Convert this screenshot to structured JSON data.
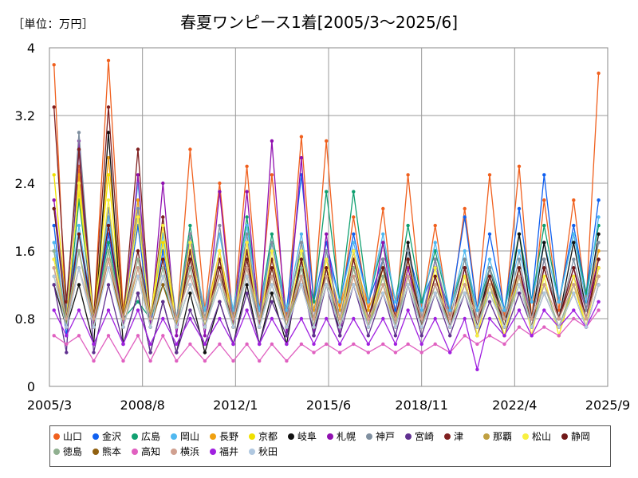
{
  "unit_label": "［単位：万円］",
  "chart_data": {
    "type": "line",
    "title": "春夏ワンピース1着[2005/3～2025/6]",
    "xlabel": "",
    "ylabel": "",
    "x_range": [
      "2005/3",
      "2025/9"
    ],
    "x_ticks": [
      "2005/3",
      "2008/8",
      "2012/1",
      "2015/6",
      "2018/11",
      "2022/4",
      "2025/9"
    ],
    "ylim": [
      0,
      4
    ],
    "y_ticks": [
      "0",
      "0.8",
      "1.6",
      "2.4",
      "3.2",
      "4"
    ],
    "grid": true,
    "legend_position": "bottom",
    "peak_months": [
      "2005/5",
      "2006/4",
      "2007/5",
      "2008/6",
      "2009/5",
      "2010/5",
      "2011/6",
      "2012/6",
      "2013/5",
      "2014/6",
      "2015/5",
      "2016/5",
      "2017/6",
      "2018/5",
      "2019/5",
      "2020/6",
      "2021/5",
      "2022/6",
      "2023/5",
      "2024/6",
      "2025/5"
    ],
    "series": [
      {
        "name": "山口",
        "color": "#f0601e",
        "values": [
          3.8,
          2.6,
          3.85,
          2.0,
          1.9,
          2.8,
          2.4,
          2.6,
          2.5,
          2.95,
          2.9,
          2.0,
          2.1,
          2.5,
          1.9,
          2.1,
          2.5,
          2.6,
          2.2,
          2.2,
          3.7
        ],
        "troughs": [
          0.7,
          0.8,
          0.9,
          0.8,
          0.7,
          0.9,
          0.8,
          0.9,
          0.8,
          1.0,
          0.9,
          0.9,
          0.8,
          0.9,
          0.8,
          0.9,
          0.8,
          0.8,
          0.9,
          1.0
        ]
      },
      {
        "name": "金沢",
        "color": "#1060f0",
        "values": [
          1.9,
          1.8,
          1.8,
          1.9,
          1.6,
          1.6,
          1.5,
          1.6,
          1.7,
          2.5,
          1.7,
          1.8,
          1.5,
          1.6,
          1.4,
          2.0,
          1.8,
          2.1,
          2.5,
          1.9,
          2.2
        ],
        "troughs": [
          0.6,
          0.7,
          0.8,
          0.7,
          0.7,
          0.8,
          0.8,
          0.9,
          0.9,
          1.0,
          1.0,
          1.0,
          0.9,
          1.0,
          0.9,
          0.9,
          0.9,
          1.0,
          1.0,
          1.1
        ]
      },
      {
        "name": "広島",
        "color": "#10a070",
        "values": [
          1.6,
          2.2,
          1.7,
          1.0,
          1.2,
          1.9,
          1.3,
          2.0,
          1.8,
          1.6,
          2.3,
          2.3,
          1.7,
          1.9,
          1.6,
          1.5,
          1.4,
          1.8,
          1.9,
          1.8,
          1.9
        ],
        "troughs": [
          0.7,
          0.8,
          0.8,
          0.8,
          0.8,
          0.8,
          0.9,
          0.9,
          0.9,
          1.0,
          1.0,
          1.0,
          1.0,
          1.0,
          0.9,
          0.9,
          0.9,
          1.0,
          1.0,
          1.1
        ]
      },
      {
        "name": "岡山",
        "color": "#50b8f0",
        "values": [
          1.7,
          1.9,
          2.0,
          2.4,
          1.8,
          1.7,
          1.8,
          1.9,
          1.7,
          1.8,
          1.6,
          1.7,
          1.8,
          1.6,
          1.7,
          1.6,
          1.5,
          1.6,
          1.7,
          1.8,
          2.0
        ],
        "troughs": [
          0.8,
          0.8,
          0.8,
          0.8,
          0.8,
          0.9,
          0.9,
          0.9,
          0.9,
          0.9,
          1.0,
          1.0,
          1.0,
          0.9,
          0.9,
          0.9,
          0.9,
          1.0,
          1.0,
          1.0
        ]
      },
      {
        "name": "長野",
        "color": "#f0a010",
        "values": [
          1.5,
          2.5,
          2.7,
          2.2,
          1.9,
          1.8,
          1.6,
          1.7,
          1.5,
          1.7,
          1.5,
          1.6,
          1.4,
          1.5,
          1.4,
          1.4,
          1.3,
          1.4,
          1.5,
          1.4,
          1.6
        ],
        "troughs": [
          0.8,
          0.8,
          0.9,
          0.8,
          0.7,
          0.8,
          0.8,
          0.8,
          0.8,
          0.9,
          0.9,
          0.9,
          0.8,
          0.8,
          0.7,
          0.8,
          0.8,
          0.8,
          0.8,
          0.9
        ]
      },
      {
        "name": "京都",
        "color": "#f0e000",
        "values": [
          2.5,
          2.3,
          2.5,
          2.0,
          1.7,
          1.6,
          1.5,
          1.6,
          1.4,
          1.5,
          1.4,
          1.5,
          1.3,
          1.4,
          1.3,
          1.3,
          1.2,
          1.3,
          1.3,
          1.2,
          1.4
        ],
        "troughs": [
          0.9,
          0.8,
          0.8,
          0.8,
          0.7,
          0.7,
          0.7,
          0.7,
          0.7,
          0.8,
          0.8,
          0.8,
          0.7,
          0.7,
          0.7,
          0.6,
          0.6,
          0.7,
          0.6,
          0.7
        ]
      },
      {
        "name": "岐阜",
        "color": "#101010",
        "values": [
          1.2,
          1.2,
          3.0,
          1.1,
          1.0,
          1.1,
          1.0,
          1.2,
          1.1,
          1.5,
          1.4,
          1.6,
          1.5,
          1.7,
          1.5,
          1.4,
          1.4,
          1.8,
          1.7,
          1.7,
          1.8
        ],
        "troughs": [
          0.7,
          0.5,
          0.5,
          0.4,
          0.4,
          0.4,
          0.5,
          0.5,
          0.5,
          0.6,
          0.6,
          0.7,
          0.7,
          0.7,
          0.7,
          0.7,
          0.7,
          0.8,
          0.8,
          0.9
        ]
      },
      {
        "name": "札幌",
        "color": "#9010b0",
        "values": [
          2.2,
          2.9,
          1.9,
          2.5,
          2.4,
          1.8,
          2.3,
          2.3,
          2.9,
          2.7,
          1.8,
          1.6,
          1.7,
          1.4,
          1.5,
          1.4,
          1.3,
          1.4,
          1.5,
          1.4,
          1.5
        ],
        "troughs": [
          0.9,
          0.7,
          0.7,
          0.7,
          0.6,
          0.6,
          0.7,
          0.7,
          0.6,
          0.6,
          0.6,
          0.7,
          0.7,
          0.7,
          0.7,
          0.7,
          0.7,
          0.8,
          0.8,
          0.9
        ]
      },
      {
        "name": "神戸",
        "color": "#8090a0",
        "values": [
          2.1,
          3.0,
          2.1,
          2.1,
          2.0,
          1.8,
          1.9,
          1.8,
          1.7,
          1.7,
          1.6,
          1.6,
          1.5,
          1.6,
          1.5,
          1.5,
          1.4,
          1.5,
          1.5,
          1.5,
          1.7
        ],
        "troughs": [
          0.9,
          0.8,
          0.8,
          0.8,
          0.8,
          0.8,
          0.8,
          0.8,
          0.8,
          0.8,
          0.8,
          0.8,
          0.8,
          0.8,
          0.8,
          0.8,
          0.8,
          0.8,
          0.8,
          0.9
        ]
      },
      {
        "name": "宮崎",
        "color": "#603090",
        "values": [
          1.2,
          2.8,
          1.2,
          1.1,
          1.0,
          0.9,
          1.0,
          1.1,
          1.0,
          1.3,
          1.2,
          1.2,
          1.1,
          1.2,
          1.1,
          1.1,
          1.0,
          1.1,
          1.1,
          1.1,
          1.2
        ],
        "troughs": [
          0.4,
          0.4,
          0.5,
          0.4,
          0.4,
          0.5,
          0.5,
          0.5,
          0.6,
          0.6,
          0.6,
          0.6,
          0.6,
          0.6,
          0.6,
          0.6,
          0.6,
          0.7,
          0.7,
          0.7
        ]
      },
      {
        "name": "津",
        "color": "#802020",
        "values": [
          3.3,
          2.8,
          3.3,
          2.8,
          2.0,
          1.6,
          1.5,
          1.6,
          1.5,
          1.5,
          1.4,
          1.5,
          1.4,
          1.5,
          1.3,
          1.4,
          1.3,
          1.4,
          1.4,
          1.3,
          1.4
        ],
        "troughs": [
          1.0,
          0.8,
          0.8,
          0.8,
          0.7,
          0.7,
          0.7,
          0.7,
          0.7,
          0.7,
          0.7,
          0.8,
          0.7,
          0.7,
          0.7,
          0.7,
          0.7,
          0.7,
          0.8,
          0.8
        ]
      },
      {
        "name": "那覇",
        "color": "#c0a040",
        "values": [
          1.4,
          1.6,
          1.6,
          1.4,
          1.3,
          1.2,
          1.3,
          1.4,
          1.3,
          1.3,
          1.2,
          1.3,
          1.2,
          1.3,
          1.2,
          1.2,
          1.1,
          1.2,
          1.2,
          1.2,
          1.3
        ],
        "troughs": [
          0.7,
          0.7,
          0.7,
          0.7,
          0.7,
          0.7,
          0.7,
          0.7,
          0.7,
          0.7,
          0.7,
          0.7,
          0.7,
          0.7,
          0.7,
          0.7,
          0.7,
          0.7,
          0.7,
          0.8
        ]
      },
      {
        "name": "松山",
        "color": "#f8f040",
        "values": [
          1.5,
          2.4,
          2.2,
          2.0,
          1.9,
          1.7,
          1.6,
          1.7,
          1.6,
          1.6,
          1.5,
          1.6,
          1.4,
          1.5,
          1.4,
          1.3,
          1.3,
          1.4,
          1.3,
          1.3,
          1.4
        ],
        "troughs": [
          0.8,
          0.8,
          0.8,
          0.8,
          0.7,
          0.7,
          0.7,
          0.7,
          0.7,
          0.7,
          0.7,
          0.7,
          0.7,
          0.7,
          0.7,
          0.6,
          0.6,
          0.6,
          0.6,
          0.7
        ]
      },
      {
        "name": "静岡",
        "color": "#701818",
        "values": [
          2.1,
          1.8,
          1.9,
          1.6,
          1.5,
          1.5,
          1.4,
          1.5,
          1.4,
          1.5,
          1.4,
          1.4,
          1.4,
          1.5,
          1.3,
          1.4,
          1.3,
          1.4,
          1.4,
          1.4,
          1.5
        ],
        "troughs": [
          0.8,
          0.8,
          0.8,
          0.8,
          0.7,
          0.7,
          0.7,
          0.7,
          0.7,
          0.7,
          0.7,
          0.8,
          0.8,
          0.7,
          0.7,
          0.7,
          0.7,
          0.7,
          0.8,
          0.8
        ]
      },
      {
        "name": "徳島",
        "color": "#90b090",
        "values": [
          1.6,
          1.6,
          1.6,
          1.5,
          1.4,
          1.4,
          1.3,
          1.4,
          1.3,
          1.4,
          1.3,
          1.4,
          1.3,
          1.3,
          1.2,
          1.2,
          1.2,
          1.3,
          1.2,
          1.2,
          1.3
        ],
        "troughs": [
          0.8,
          0.8,
          0.8,
          0.8,
          0.7,
          0.7,
          0.7,
          0.7,
          0.7,
          0.7,
          0.7,
          0.7,
          0.7,
          0.7,
          0.7,
          0.7,
          0.7,
          0.7,
          0.7,
          0.8
        ]
      },
      {
        "name": "熊本",
        "color": "#906010",
        "values": [
          1.3,
          1.4,
          1.5,
          1.3,
          1.2,
          1.2,
          1.2,
          1.3,
          1.2,
          1.2,
          1.2,
          1.2,
          1.1,
          1.2,
          1.1,
          1.1,
          1.1,
          1.2,
          1.1,
          1.1,
          1.2
        ],
        "troughs": [
          0.7,
          0.7,
          0.7,
          0.7,
          0.7,
          0.7,
          0.7,
          0.7,
          0.7,
          0.7,
          0.7,
          0.7,
          0.7,
          0.7,
          0.7,
          0.7,
          0.7,
          0.7,
          0.7,
          0.7
        ]
      },
      {
        "name": "高知",
        "color": "#e060c0",
        "values": [
          0.6,
          0.6,
          0.6,
          0.6,
          0.6,
          0.5,
          0.5,
          0.5,
          0.5,
          0.5,
          0.5,
          0.5,
          0.5,
          0.5,
          0.5,
          0.6,
          0.6,
          0.7,
          0.7,
          0.8,
          0.9
        ],
        "troughs": [
          0.5,
          0.3,
          0.3,
          0.3,
          0.3,
          0.3,
          0.3,
          0.3,
          0.3,
          0.4,
          0.4,
          0.4,
          0.4,
          0.4,
          0.4,
          0.5,
          0.5,
          0.6,
          0.6,
          0.7
        ]
      },
      {
        "name": "横浜",
        "color": "#d0a090",
        "values": [
          1.4,
          1.4,
          1.5,
          1.4,
          1.3,
          1.3,
          1.3,
          1.4,
          1.3,
          1.3,
          1.3,
          1.3,
          1.2,
          1.3,
          1.2,
          1.2,
          1.2,
          1.3,
          1.2,
          1.2,
          1.3
        ],
        "troughs": [
          0.8,
          0.8,
          0.8,
          0.8,
          0.8,
          0.8,
          0.8,
          0.8,
          0.8,
          0.8,
          0.8,
          0.8,
          0.8,
          0.8,
          0.8,
          0.8,
          0.8,
          0.8,
          0.8,
          0.8
        ]
      },
      {
        "name": "福井",
        "color": "#a020e0",
        "values": [
          0.9,
          0.9,
          0.9,
          0.9,
          0.8,
          0.8,
          0.8,
          0.9,
          0.8,
          0.8,
          0.8,
          0.8,
          0.8,
          0.9,
          0.8,
          0.8,
          0.8,
          0.9,
          0.9,
          0.9,
          1.0
        ],
        "troughs": [
          0.6,
          0.5,
          0.5,
          0.5,
          0.5,
          0.5,
          0.5,
          0.5,
          0.5,
          0.5,
          0.5,
          0.5,
          0.5,
          0.5,
          0.4,
          0.2,
          0.6,
          0.6,
          0.7,
          0.7
        ]
      },
      {
        "name": "秋田",
        "color": "#b0c8e0",
        "values": [
          1.3,
          1.4,
          1.4,
          1.3,
          1.3,
          1.2,
          1.2,
          1.3,
          1.2,
          1.2,
          1.2,
          1.2,
          1.1,
          1.2,
          1.1,
          1.1,
          1.1,
          1.2,
          1.1,
          1.1,
          1.2
        ],
        "troughs": [
          0.7,
          0.7,
          0.7,
          0.7,
          0.7,
          0.7,
          0.7,
          0.7,
          0.7,
          0.7,
          0.7,
          0.7,
          0.7,
          0.7,
          0.7,
          0.7,
          0.7,
          0.7,
          0.7,
          0.7
        ]
      }
    ]
  }
}
